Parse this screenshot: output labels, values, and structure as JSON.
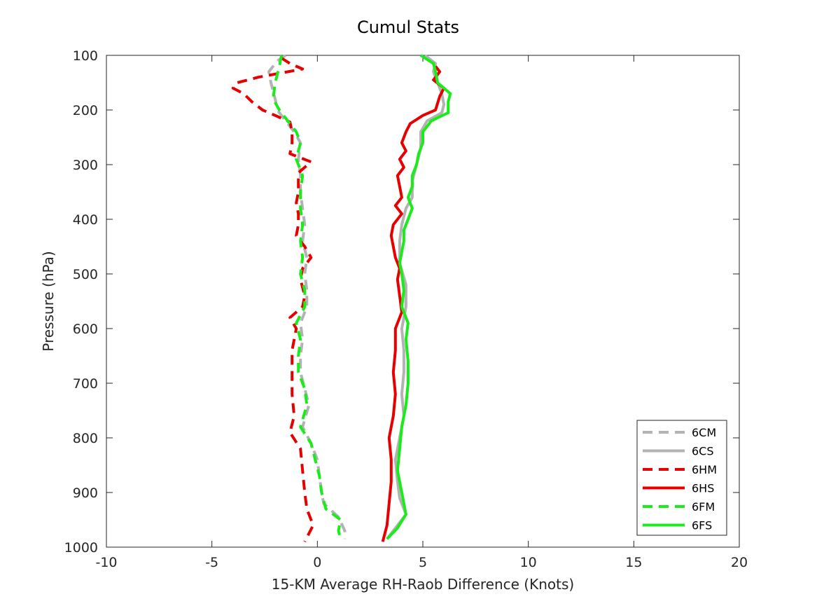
{
  "chart_data": {
    "type": "line",
    "title": "Cumul Stats",
    "xlabel": "15-KM Average RH-Raob Difference (Knots)",
    "ylabel": "Pressure (hPa)",
    "xlim": [
      -10,
      20
    ],
    "ylim": [
      100,
      1000
    ],
    "y_reversed": true,
    "grid": false,
    "legend_position": "bottom-right",
    "xticks": [
      -10,
      -5,
      0,
      5,
      10,
      15,
      20
    ],
    "yticks": [
      100,
      200,
      300,
      400,
      500,
      600,
      700,
      800,
      900,
      1000
    ],
    "series": [
      {
        "name": "6CM",
        "color": "#b3b3b3",
        "style": "dashed",
        "points": [
          [
            -1.5,
            100
          ],
          [
            -1.9,
            110
          ],
          [
            -2.3,
            130
          ],
          [
            -2.2,
            150
          ],
          [
            -2.0,
            180
          ],
          [
            -1.9,
            200
          ],
          [
            -1.5,
            220
          ],
          [
            -1.1,
            240
          ],
          [
            -0.8,
            260
          ],
          [
            -0.9,
            290
          ],
          [
            -0.8,
            320
          ],
          [
            -0.8,
            350
          ],
          [
            -0.7,
            380
          ],
          [
            -0.6,
            410
          ],
          [
            -0.7,
            440
          ],
          [
            -0.5,
            470
          ],
          [
            -0.6,
            500
          ],
          [
            -0.5,
            530
          ],
          [
            -0.5,
            560
          ],
          [
            -0.8,
            590
          ],
          [
            -0.7,
            620
          ],
          [
            -0.8,
            650
          ],
          [
            -0.8,
            680
          ],
          [
            -0.6,
            710
          ],
          [
            -0.4,
            740
          ],
          [
            -0.7,
            780
          ],
          [
            -0.3,
            810
          ],
          [
            0.0,
            840
          ],
          [
            0.1,
            870
          ],
          [
            0.2,
            900
          ],
          [
            0.3,
            920
          ],
          [
            1.0,
            945
          ],
          [
            1.3,
            970
          ],
          [
            1.3,
            985
          ]
        ]
      },
      {
        "name": "6CS",
        "color": "#b3b3b3",
        "style": "solid",
        "points": [
          [
            5.1,
            100
          ],
          [
            5.6,
            115
          ],
          [
            5.5,
            130
          ],
          [
            5.7,
            150
          ],
          [
            5.9,
            170
          ],
          [
            6.0,
            190
          ],
          [
            5.9,
            205
          ],
          [
            5.2,
            220
          ],
          [
            4.9,
            240
          ],
          [
            4.9,
            270
          ],
          [
            4.7,
            300
          ],
          [
            4.5,
            330
          ],
          [
            4.5,
            360
          ],
          [
            4.2,
            380
          ],
          [
            4.0,
            410
          ],
          [
            3.9,
            440
          ],
          [
            3.9,
            480
          ],
          [
            4.2,
            520
          ],
          [
            4.2,
            560
          ],
          [
            4.0,
            600
          ],
          [
            4.1,
            640
          ],
          [
            4.1,
            680
          ],
          [
            4.0,
            720
          ],
          [
            4.1,
            760
          ],
          [
            3.9,
            800
          ],
          [
            3.7,
            840
          ],
          [
            3.8,
            880
          ],
          [
            3.9,
            910
          ],
          [
            4.2,
            940
          ],
          [
            3.8,
            960
          ],
          [
            3.3,
            985
          ]
        ]
      },
      {
        "name": "6HM",
        "color": "#e60000",
        "style": "dashed",
        "points": [
          [
            -1.7,
            105
          ],
          [
            -1.3,
            115
          ],
          [
            -0.7,
            125
          ],
          [
            -2.8,
            140
          ],
          [
            -3.8,
            150
          ],
          [
            -4.0,
            160
          ],
          [
            -3.5,
            170
          ],
          [
            -3.1,
            185
          ],
          [
            -2.6,
            200
          ],
          [
            -2.0,
            210
          ],
          [
            -1.3,
            222
          ],
          [
            -1.2,
            240
          ],
          [
            -1.2,
            260
          ],
          [
            -1.3,
            280
          ],
          [
            -0.3,
            295
          ],
          [
            -0.9,
            315
          ],
          [
            -0.9,
            330
          ],
          [
            -0.9,
            350
          ],
          [
            -1.0,
            370
          ],
          [
            -0.9,
            390
          ],
          [
            -0.9,
            410
          ],
          [
            -1.0,
            430
          ],
          [
            -0.6,
            450
          ],
          [
            -0.3,
            470
          ],
          [
            -0.7,
            490
          ],
          [
            -0.8,
            510
          ],
          [
            -0.6,
            540
          ],
          [
            -0.7,
            560
          ],
          [
            -1.3,
            580
          ],
          [
            -1.0,
            600
          ],
          [
            -1.2,
            640
          ],
          [
            -1.2,
            680
          ],
          [
            -1.2,
            720
          ],
          [
            -1.1,
            760
          ],
          [
            -1.3,
            790
          ],
          [
            -0.8,
            820
          ],
          [
            -0.7,
            860
          ],
          [
            -0.6,
            900
          ],
          [
            -0.5,
            930
          ],
          [
            -0.2,
            960
          ],
          [
            -0.6,
            990
          ]
        ]
      },
      {
        "name": "6HS",
        "color": "#e60000",
        "style": "solid",
        "points": [
          [
            5.6,
            120
          ],
          [
            5.8,
            130
          ],
          [
            5.5,
            145
          ],
          [
            6.0,
            160
          ],
          [
            5.8,
            175
          ],
          [
            5.6,
            200
          ],
          [
            5.0,
            210
          ],
          [
            4.4,
            225
          ],
          [
            4.2,
            240
          ],
          [
            4.0,
            260
          ],
          [
            4.2,
            275
          ],
          [
            3.9,
            290
          ],
          [
            4.1,
            305
          ],
          [
            3.8,
            320
          ],
          [
            3.9,
            340
          ],
          [
            4.0,
            360
          ],
          [
            3.7,
            375
          ],
          [
            4.0,
            390
          ],
          [
            3.6,
            410
          ],
          [
            3.5,
            430
          ],
          [
            3.6,
            450
          ],
          [
            3.7,
            470
          ],
          [
            3.9,
            490
          ],
          [
            3.8,
            510
          ],
          [
            3.9,
            540
          ],
          [
            4.0,
            570
          ],
          [
            3.7,
            600
          ],
          [
            3.7,
            640
          ],
          [
            3.6,
            680
          ],
          [
            3.7,
            720
          ],
          [
            3.6,
            760
          ],
          [
            3.4,
            800
          ],
          [
            3.5,
            840
          ],
          [
            3.5,
            880
          ],
          [
            3.4,
            920
          ],
          [
            3.3,
            960
          ],
          [
            3.1,
            990
          ]
        ]
      },
      {
        "name": "6FM",
        "color": "#1aeb1a",
        "style": "dashed",
        "points": [
          [
            -1.7,
            100
          ],
          [
            -1.8,
            120
          ],
          [
            -2.0,
            150
          ],
          [
            -2.1,
            180
          ],
          [
            -1.8,
            200
          ],
          [
            -1.4,
            220
          ],
          [
            -1.0,
            240
          ],
          [
            -0.8,
            260
          ],
          [
            -1.0,
            290
          ],
          [
            -0.7,
            320
          ],
          [
            -0.8,
            350
          ],
          [
            -0.8,
            380
          ],
          [
            -0.7,
            410
          ],
          [
            -0.8,
            440
          ],
          [
            -0.7,
            470
          ],
          [
            -0.8,
            500
          ],
          [
            -0.6,
            530
          ],
          [
            -0.6,
            560
          ],
          [
            -1.0,
            590
          ],
          [
            -0.8,
            620
          ],
          [
            -0.9,
            650
          ],
          [
            -0.9,
            680
          ],
          [
            -0.6,
            710
          ],
          [
            -0.5,
            740
          ],
          [
            -0.8,
            780
          ],
          [
            -0.3,
            810
          ],
          [
            -0.1,
            840
          ],
          [
            0.1,
            870
          ],
          [
            0.2,
            900
          ],
          [
            0.4,
            930
          ],
          [
            1.1,
            950
          ],
          [
            1.0,
            970
          ],
          [
            1.1,
            985
          ]
        ]
      },
      {
        "name": "6FS",
        "color": "#1aeb1a",
        "style": "solid",
        "points": [
          [
            4.9,
            100
          ],
          [
            5.5,
            115
          ],
          [
            5.6,
            130
          ],
          [
            5.7,
            150
          ],
          [
            6.3,
            170
          ],
          [
            6.2,
            185
          ],
          [
            6.2,
            205
          ],
          [
            5.4,
            220
          ],
          [
            5.0,
            240
          ],
          [
            5.0,
            260
          ],
          [
            4.8,
            280
          ],
          [
            4.7,
            300
          ],
          [
            4.5,
            320
          ],
          [
            4.5,
            340
          ],
          [
            4.3,
            360
          ],
          [
            4.5,
            380
          ],
          [
            4.3,
            400
          ],
          [
            4.1,
            420
          ],
          [
            4.1,
            440
          ],
          [
            4.0,
            460
          ],
          [
            3.9,
            480
          ],
          [
            4.0,
            500
          ],
          [
            4.1,
            530
          ],
          [
            4.0,
            560
          ],
          [
            4.3,
            590
          ],
          [
            4.2,
            620
          ],
          [
            4.3,
            660
          ],
          [
            4.3,
            700
          ],
          [
            4.2,
            740
          ],
          [
            4.0,
            780
          ],
          [
            3.9,
            820
          ],
          [
            3.8,
            860
          ],
          [
            4.0,
            900
          ],
          [
            4.2,
            940
          ],
          [
            3.8,
            965
          ],
          [
            3.3,
            985
          ]
        ]
      }
    ]
  }
}
